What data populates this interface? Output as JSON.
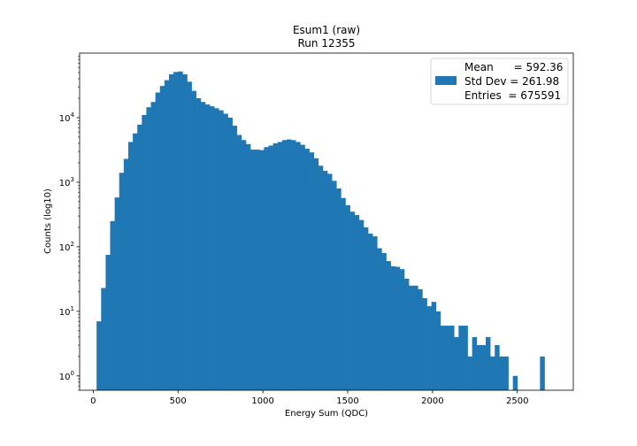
{
  "chart_data": {
    "type": "bar",
    "title": "Esum1 (raw)",
    "subtitle": "Run 12355",
    "xlabel": "Energy Sum (QDC)",
    "ylabel": "Counts (log10)",
    "xlim": [
      -80,
      2830
    ],
    "ylim": [
      0.6,
      100000
    ],
    "yscale": "log",
    "xticks": [
      0,
      500,
      1000,
      1500,
      2000,
      2500
    ],
    "xtick_labels": [
      "0",
      "500",
      "1000",
      "1500",
      "2000",
      "2500"
    ],
    "yticks": [
      1,
      10,
      100,
      1000,
      10000
    ],
    "ytick_exponents": [
      "0",
      "1",
      "2",
      "3",
      "4"
    ],
    "ytick_base": "10",
    "color": "#1f77b4",
    "bin_width": 26.67,
    "bin_start": 20,
    "values": [
      7,
      23,
      75,
      250,
      580,
      1400,
      2300,
      4200,
      5700,
      7800,
      11000,
      14500,
      17500,
      24500,
      31000,
      38000,
      47000,
      51000,
      52000,
      47000,
      36000,
      26000,
      20000,
      17500,
      16000,
      15000,
      14000,
      13000,
      11500,
      10000,
      7500,
      5400,
      4500,
      3900,
      3200,
      3200,
      3150,
      3500,
      3700,
      4000,
      4200,
      4500,
      4600,
      4500,
      4200,
      3800,
      3300,
      2900,
      2350,
      1800,
      1500,
      1350,
      1050,
      800,
      570,
      440,
      350,
      310,
      260,
      200,
      160,
      145,
      95,
      80,
      60,
      50,
      49,
      45,
      32,
      25,
      25,
      22,
      16,
      12,
      14,
      10,
      6,
      6,
      6,
      4,
      6,
      6,
      2,
      4,
      3,
      3,
      4,
      2,
      3,
      2,
      2,
      0,
      1,
      0,
      0,
      0,
      0,
      0,
      2
    ],
    "legend": {
      "placement": "top-right",
      "rows": [
        "Mean      = 592.36",
        "Std Dev = 261.98",
        "Entries  = 675591"
      ]
    }
  }
}
